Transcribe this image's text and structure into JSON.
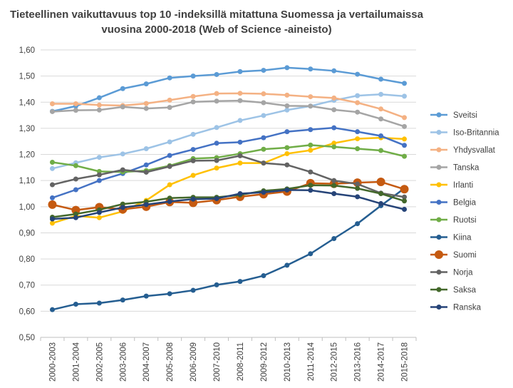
{
  "chart_data": {
    "type": "line",
    "title": "Tieteellinen vaikuttavuus top 10 -indeksillä mitattuna Suomessa ja vertailumaissa vuosina 2000-2018 (Web of Science -aineisto)",
    "title_lines": [
      "Tieteellinen vaikuttavuus top 10 -indeksillä mitattuna Suomessa ja vertailumaissa",
      "vuosina 2000-2018 (Web of Science -aineisto)"
    ],
    "xlabel": "",
    "ylabel": "",
    "ylim": [
      0.5,
      1.6
    ],
    "ytick_step": 0.1,
    "ytick_labels": [
      "0,50",
      "0,60",
      "0,70",
      "0,80",
      "0,90",
      "1,00",
      "1,10",
      "1,20",
      "1,30",
      "1,40",
      "1,50",
      "1,60"
    ],
    "grid": true,
    "legend_position": "right",
    "categories": [
      "2000-2003",
      "2001-2004",
      "2002-2005",
      "2003-2006",
      "2004-2007",
      "2005-2008",
      "2006-2009",
      "2007-2010",
      "2008-2011",
      "2009-2012",
      "2010-2013",
      "2011-2014",
      "2012-2015",
      "2013-2016",
      "2014-2017",
      "2015-2018"
    ],
    "series": [
      {
        "name": "Sveitsi",
        "color": "#5B9BD5",
        "marker_size": 3.5,
        "values": [
          1.365,
          1.385,
          1.417,
          1.452,
          1.47,
          1.493,
          1.5,
          1.506,
          1.517,
          1.522,
          1.532,
          1.527,
          1.52,
          1.507,
          1.488,
          1.472
        ]
      },
      {
        "name": "Iso-Britannia",
        "color": "#9DC3E6",
        "marker_size": 3.5,
        "values": [
          1.146,
          1.168,
          1.189,
          1.202,
          1.222,
          1.248,
          1.277,
          1.303,
          1.33,
          1.349,
          1.37,
          1.385,
          1.407,
          1.425,
          1.43,
          1.423
        ]
      },
      {
        "name": "Yhdysvallat",
        "color": "#F4B183",
        "marker_size": 3.5,
        "values": [
          1.394,
          1.394,
          1.389,
          1.387,
          1.395,
          1.408,
          1.422,
          1.433,
          1.434,
          1.432,
          1.427,
          1.421,
          1.416,
          1.398,
          1.374,
          1.341
        ]
      },
      {
        "name": "Tanska",
        "color": "#A5A5A5",
        "marker_size": 3.5,
        "values": [
          1.364,
          1.369,
          1.37,
          1.382,
          1.376,
          1.38,
          1.401,
          1.404,
          1.406,
          1.398,
          1.386,
          1.385,
          1.371,
          1.362,
          1.336,
          1.307
        ]
      },
      {
        "name": "Irlanti",
        "color": "#FFC000",
        "marker_size": 3.5,
        "values": [
          0.937,
          0.965,
          0.958,
          0.982,
          1.024,
          1.084,
          1.12,
          1.148,
          1.167,
          1.167,
          1.203,
          1.216,
          1.243,
          1.26,
          1.264,
          1.259
        ]
      },
      {
        "name": "Belgia",
        "color": "#4472C4",
        "marker_size": 3.5,
        "values": [
          1.034,
          1.065,
          1.1,
          1.127,
          1.16,
          1.196,
          1.219,
          1.243,
          1.247,
          1.264,
          1.287,
          1.295,
          1.302,
          1.287,
          1.271,
          1.235
        ]
      },
      {
        "name": "Ruotsi",
        "color": "#70AD47",
        "marker_size": 3.5,
        "values": [
          1.17,
          1.157,
          1.135,
          1.133,
          1.138,
          1.157,
          1.184,
          1.188,
          1.203,
          1.22,
          1.226,
          1.236,
          1.229,
          1.222,
          1.215,
          1.193
        ]
      },
      {
        "name": "Kiina",
        "color": "#255E91",
        "marker_size": 3.5,
        "values": [
          0.606,
          0.627,
          0.631,
          0.643,
          0.658,
          0.667,
          0.68,
          0.701,
          0.714,
          0.736,
          0.776,
          0.82,
          0.878,
          0.935,
          1.004,
          1.07
        ]
      },
      {
        "name": "Suomi",
        "color": "#C55A11",
        "marker_size": 6,
        "values": [
          1.008,
          0.987,
          0.998,
          0.99,
          1.0,
          1.018,
          1.015,
          1.025,
          1.038,
          1.048,
          1.058,
          1.09,
          1.088,
          1.092,
          1.095,
          1.067
        ]
      },
      {
        "name": "Norja",
        "color": "#636363",
        "marker_size": 3.5,
        "values": [
          1.084,
          1.106,
          1.122,
          1.141,
          1.132,
          1.154,
          1.176,
          1.177,
          1.195,
          1.167,
          1.16,
          1.133,
          1.1,
          1.087,
          1.052,
          1.037
        ]
      },
      {
        "name": "Saksa",
        "color": "#43682B",
        "marker_size": 3.5,
        "values": [
          0.96,
          0.972,
          0.988,
          1.01,
          1.019,
          1.033,
          1.036,
          1.036,
          1.045,
          1.061,
          1.068,
          1.082,
          1.081,
          1.07,
          1.05,
          1.022
        ]
      },
      {
        "name": "Ranska",
        "color": "#264478",
        "marker_size": 3.5,
        "values": [
          0.953,
          0.958,
          0.978,
          0.997,
          1.008,
          1.02,
          1.029,
          1.031,
          1.05,
          1.055,
          1.064,
          1.063,
          1.05,
          1.038,
          1.012,
          0.99
        ]
      }
    ]
  }
}
